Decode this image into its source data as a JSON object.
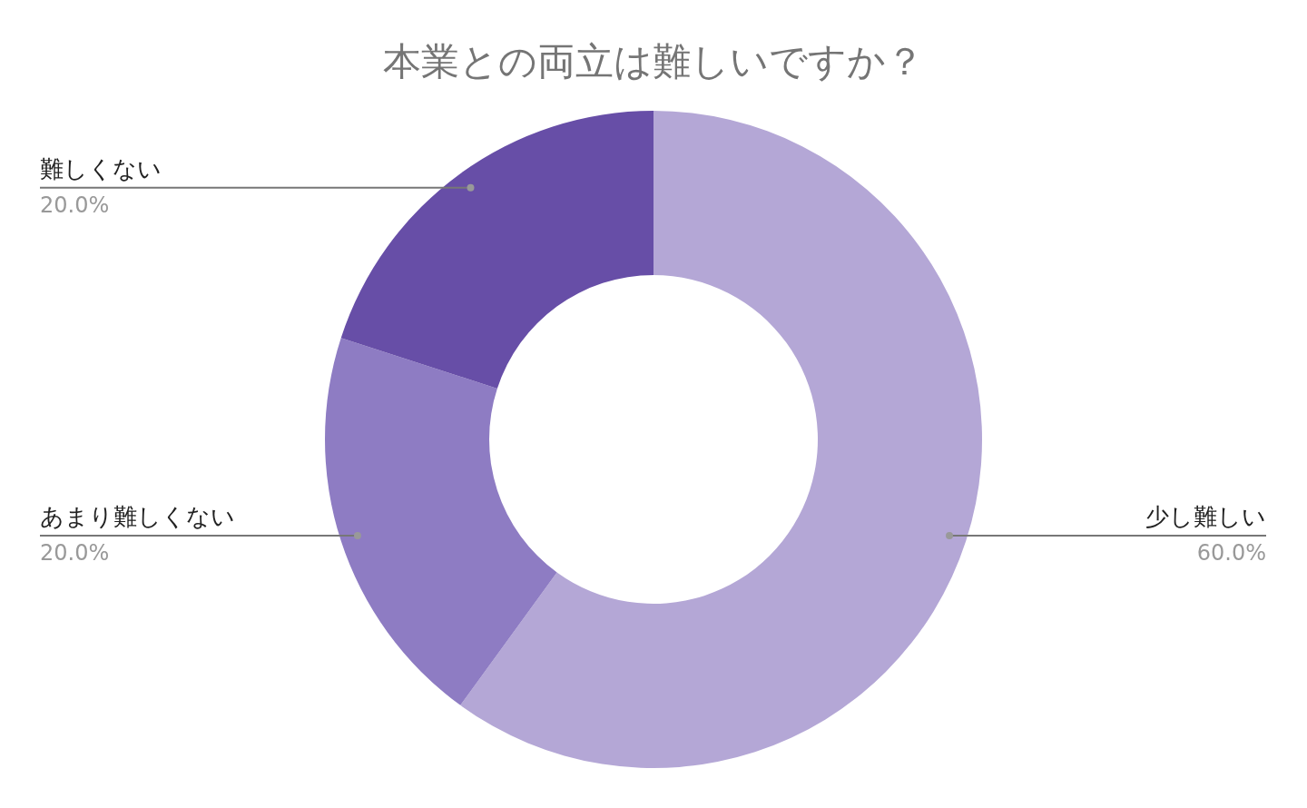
{
  "chart_data": {
    "type": "donut",
    "title": "本業との両立は難しいですか？",
    "categories": [
      "少し難しい",
      "あまり難しくない",
      "難しくない"
    ],
    "values": [
      60,
      20,
      20
    ],
    "value_labels": [
      "60.0%",
      "20.0%",
      "20.0%"
    ],
    "colors": [
      "#b4a7d6",
      "#8e7cc3",
      "#674ea7"
    ]
  }
}
